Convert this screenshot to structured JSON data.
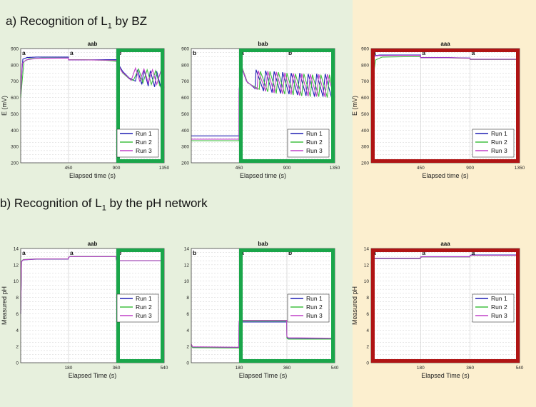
{
  "section_a": {
    "prefix": "a)  Recognition of L",
    "subscript": "1",
    "suffix": " by BZ"
  },
  "section_b": {
    "prefix": "b) Recognition of L",
    "subscript": "1",
    "suffix": " by the pH network"
  },
  "colors": {
    "run1": "#1f1fb4",
    "run2": "#40c040",
    "run3": "#c040c8",
    "frame_green": "#1aa64a",
    "frame_red": "#b01414",
    "plot_bg": "#ffffff"
  },
  "chart_data": [
    {
      "id": "bz-aab",
      "type": "line",
      "title": "aab",
      "xlabel": "Elapsed time (s)",
      "ylabel": "E (mV)",
      "xlim": [
        0,
        1350
      ],
      "ylim": [
        200,
        900
      ],
      "xticks": [
        450,
        900,
        1350
      ],
      "yticks": [
        200,
        300,
        400,
        500,
        600,
        700,
        800,
        900
      ],
      "grid": true,
      "legend": [
        "Run 1",
        "Run 2",
        "Run 3"
      ],
      "legend_position": "bottom-right",
      "phase_labels": [
        {
          "x": 0,
          "text": "a"
        },
        {
          "x": 450,
          "text": "a"
        },
        {
          "x": 900,
          "text": "b"
        }
      ],
      "highlight": {
        "x_from": 900,
        "x_to": 1350,
        "color": "green"
      },
      "series": [
        {
          "name": "Run 1",
          "x": [
            0,
            20,
            60,
            150,
            300,
            449,
            450,
            600,
            800,
            899,
            900,
            960,
            1020,
            1080,
            1100,
            1140,
            1160,
            1200,
            1220,
            1260,
            1280,
            1320,
            1350
          ],
          "y": [
            650,
            835,
            845,
            848,
            848,
            848,
            830,
            830,
            832,
            832,
            825,
            760,
            720,
            700,
            770,
            680,
            770,
            670,
            765,
            665,
            760,
            660,
            655
          ]
        },
        {
          "name": "Run 2",
          "x": [
            0,
            30,
            80,
            200,
            449,
            450,
            600,
            800,
            899,
            900,
            960,
            1020,
            1060,
            1110,
            1150,
            1190,
            1230,
            1270,
            1310,
            1350
          ],
          "y": [
            600,
            820,
            838,
            842,
            842,
            832,
            832,
            828,
            822,
            820,
            750,
            715,
            705,
            775,
            690,
            770,
            680,
            765,
            670,
            660
          ]
        },
        {
          "name": "Run 3",
          "x": [
            0,
            15,
            50,
            150,
            449,
            450,
            600,
            899,
            900,
            950,
            1000,
            1040,
            1080,
            1120,
            1160,
            1200,
            1240,
            1280,
            1320,
            1350
          ],
          "y": [
            620,
            810,
            830,
            840,
            842,
            831,
            831,
            828,
            822,
            760,
            730,
            705,
            780,
            700,
            775,
            690,
            770,
            680,
            765,
            660
          ]
        }
      ]
    },
    {
      "id": "bz-bab",
      "type": "line",
      "title": "bab",
      "xlabel": "Elapsed time (s)",
      "ylabel": "",
      "xlim": [
        0,
        1350
      ],
      "ylim": [
        200,
        900
      ],
      "xticks": [
        450,
        900,
        1350
      ],
      "yticks": [
        200,
        300,
        400,
        500,
        600,
        700,
        800,
        900
      ],
      "grid": true,
      "legend": [
        "Run 1",
        "Run 2",
        "Run 3"
      ],
      "legend_position": "bottom-right",
      "phase_labels": [
        {
          "x": 0,
          "text": "b"
        },
        {
          "x": 450,
          "text": "a"
        },
        {
          "x": 900,
          "text": "b"
        }
      ],
      "highlight": {
        "x_from": 450,
        "x_to": 1350,
        "color": "green"
      },
      "series": [
        {
          "name": "Run 1",
          "x": [
            0,
            449,
            450,
            470,
            520,
            600,
            610,
            680,
            700,
            760,
            780,
            840,
            860,
            920,
            940,
            1000,
            1020,
            1080,
            1100,
            1160,
            1180,
            1240,
            1260,
            1320,
            1350
          ],
          "y": [
            365,
            365,
            640,
            790,
            700,
            655,
            770,
            640,
            765,
            630,
            760,
            625,
            755,
            620,
            750,
            615,
            750,
            610,
            745,
            605,
            745,
            605,
            745,
            600,
            600
          ]
        },
        {
          "name": "Run 2",
          "x": [
            0,
            449,
            450,
            480,
            530,
            640,
            650,
            720,
            740,
            800,
            820,
            880,
            900,
            960,
            980,
            1040,
            1060,
            1120,
            1140,
            1200,
            1220,
            1280,
            1300,
            1350
          ],
          "y": [
            335,
            335,
            630,
            780,
            690,
            650,
            760,
            635,
            760,
            625,
            755,
            620,
            750,
            615,
            745,
            610,
            745,
            605,
            740,
            605,
            740,
            600,
            740,
            600
          ]
        },
        {
          "name": "Run 3",
          "x": [
            0,
            449,
            450,
            475,
            525,
            620,
            630,
            700,
            720,
            780,
            800,
            860,
            880,
            940,
            960,
            1020,
            1040,
            1100,
            1120,
            1180,
            1200,
            1260,
            1280,
            1350
          ],
          "y": [
            345,
            345,
            635,
            785,
            695,
            650,
            765,
            638,
            762,
            628,
            757,
            622,
            752,
            618,
            748,
            612,
            747,
            607,
            742,
            606,
            742,
            602,
            742,
            602
          ]
        }
      ]
    },
    {
      "id": "bz-aaa",
      "type": "line",
      "title": "aaa",
      "xlabel": "Elapsed time (s)",
      "ylabel": "E (mV)",
      "xlim": [
        0,
        1350
      ],
      "ylim": [
        200,
        900
      ],
      "xticks": [
        450,
        900,
        1350
      ],
      "yticks": [
        200,
        300,
        400,
        500,
        600,
        700,
        800,
        900
      ],
      "grid": true,
      "legend": [
        "Run 1",
        "Run 2",
        "Run 3"
      ],
      "legend_position": "bottom-right",
      "phase_labels": [
        {
          "x": 0,
          "text": "a"
        },
        {
          "x": 450,
          "text": "a"
        },
        {
          "x": 900,
          "text": "a"
        }
      ],
      "highlight": {
        "x_from": 0,
        "x_to": 1350,
        "color": "red"
      },
      "series": [
        {
          "name": "Run 1",
          "x": [
            0,
            20,
            80,
            300,
            449,
            450,
            700,
            899,
            900,
            1100,
            1350
          ],
          "y": [
            700,
            855,
            860,
            860,
            860,
            845,
            845,
            842,
            835,
            835,
            835
          ]
        },
        {
          "name": "Run 2",
          "x": [
            0,
            40,
            100,
            300,
            449,
            450,
            700,
            899,
            900,
            1100,
            1350
          ],
          "y": [
            640,
            830,
            848,
            850,
            850,
            843,
            843,
            840,
            832,
            832,
            832
          ]
        },
        {
          "name": "Run 3",
          "x": [
            0,
            15,
            60,
            300,
            449,
            450,
            700,
            899,
            900,
            1100,
            1350
          ],
          "y": [
            680,
            850,
            857,
            858,
            858,
            844,
            844,
            841,
            834,
            834,
            834
          ]
        }
      ]
    },
    {
      "id": "ph-aab",
      "type": "line",
      "title": "aab",
      "xlabel": "Elapsed Time (s)",
      "ylabel": "Measured pH",
      "xlim": [
        0,
        540
      ],
      "ylim": [
        0,
        14
      ],
      "xticks": [
        0,
        180,
        360,
        540
      ],
      "yticks": [
        0,
        2,
        4,
        6,
        8,
        10,
        12,
        14
      ],
      "grid": true,
      "legend": [
        "Run 1",
        "Run 2",
        "Run 3"
      ],
      "legend_position": "center-right",
      "phase_labels": [
        {
          "x": 0,
          "text": "a"
        },
        {
          "x": 180,
          "text": "a"
        },
        {
          "x": 360,
          "text": "b"
        }
      ],
      "highlight": {
        "x_from": 360,
        "x_to": 540,
        "color": "green"
      },
      "series": [
        {
          "name": "Run 1",
          "x": [
            0,
            3,
            10,
            60,
            179,
            180,
            185,
            359,
            360,
            370,
            540
          ],
          "y": [
            6,
            12.4,
            12.6,
            12.7,
            12.7,
            12.9,
            13.0,
            13.0,
            12.6,
            12.5,
            12.5
          ]
        },
        {
          "name": "Run 2",
          "x": [
            0,
            3,
            10,
            60,
            179,
            180,
            185,
            359,
            360,
            370,
            540
          ],
          "y": [
            6,
            12.45,
            12.65,
            12.72,
            12.72,
            12.92,
            13.02,
            13.02,
            12.62,
            12.52,
            12.52
          ]
        },
        {
          "name": "Run 3",
          "x": [
            0,
            3,
            10,
            60,
            179,
            180,
            185,
            359,
            360,
            370,
            540
          ],
          "y": [
            6,
            12.42,
            12.62,
            12.71,
            12.71,
            12.91,
            13.01,
            13.01,
            12.61,
            12.51,
            12.51
          ]
        }
      ]
    },
    {
      "id": "ph-bab",
      "type": "line",
      "title": "bab",
      "xlabel": "Elapsed Time (s)",
      "ylabel": "",
      "xlim": [
        0,
        540
      ],
      "ylim": [
        0,
        14
      ],
      "xticks": [
        0,
        180,
        360,
        540
      ],
      "yticks": [
        0,
        2,
        4,
        6,
        8,
        10,
        12,
        14
      ],
      "grid": true,
      "legend": [
        "Run 1",
        "Run 2",
        "Run 3"
      ],
      "legend_position": "center-right",
      "phase_labels": [
        {
          "x": 0,
          "text": "b"
        },
        {
          "x": 180,
          "text": "a"
        },
        {
          "x": 360,
          "text": "b"
        }
      ],
      "highlight": {
        "x_from": 180,
        "x_to": 540,
        "color": "green"
      },
      "series": [
        {
          "name": "Run 1",
          "x": [
            0,
            5,
            179,
            180,
            185,
            359,
            360,
            365,
            540
          ],
          "y": [
            2.2,
            1.9,
            1.85,
            4.9,
            5.0,
            5.0,
            3.1,
            3.0,
            2.95
          ]
        },
        {
          "name": "Run 2",
          "x": [
            0,
            5,
            179,
            180,
            185,
            359,
            360,
            365,
            540
          ],
          "y": [
            2.1,
            1.85,
            1.8,
            5.0,
            5.1,
            5.1,
            3.0,
            2.9,
            2.9
          ]
        },
        {
          "name": "Run 3",
          "x": [
            0,
            5,
            179,
            180,
            185,
            359,
            360,
            365,
            540
          ],
          "y": [
            2.3,
            1.95,
            1.9,
            5.1,
            5.2,
            5.2,
            3.2,
            3.05,
            3.0
          ]
        }
      ]
    },
    {
      "id": "ph-aaa",
      "type": "line",
      "title": "aaa",
      "xlabel": "Elapsed Time (s)",
      "ylabel": "Measured pH",
      "xlim": [
        0,
        540
      ],
      "ylim": [
        0,
        14
      ],
      "xticks": [
        0,
        180,
        360,
        540
      ],
      "yticks": [
        0,
        2,
        4,
        6,
        8,
        10,
        12,
        14
      ],
      "grid": true,
      "legend": [
        "Run 1",
        "Run 2",
        "Run 3"
      ],
      "legend_position": "center-right",
      "phase_labels": [
        {
          "x": 0,
          "text": "a"
        },
        {
          "x": 180,
          "text": "a"
        },
        {
          "x": 360,
          "text": "a"
        }
      ],
      "highlight": {
        "x_from": 0,
        "x_to": 540,
        "color": "red"
      },
      "series": [
        {
          "name": "Run 1",
          "x": [
            0,
            3,
            10,
            179,
            180,
            185,
            359,
            360,
            365,
            540
          ],
          "y": [
            12.2,
            12.7,
            12.8,
            12.8,
            12.95,
            13.0,
            13.0,
            13.15,
            13.2,
            13.2
          ]
        },
        {
          "name": "Run 2",
          "x": [
            0,
            3,
            10,
            179,
            180,
            185,
            359,
            360,
            365,
            540
          ],
          "y": [
            12.1,
            12.65,
            12.75,
            12.75,
            12.9,
            12.95,
            12.95,
            13.1,
            13.15,
            13.15
          ]
        },
        {
          "name": "Run 3",
          "x": [
            0,
            3,
            10,
            179,
            180,
            185,
            359,
            360,
            365,
            540
          ],
          "y": [
            12.15,
            12.68,
            12.78,
            12.78,
            12.92,
            12.98,
            12.98,
            13.12,
            13.18,
            13.18
          ]
        }
      ]
    }
  ]
}
